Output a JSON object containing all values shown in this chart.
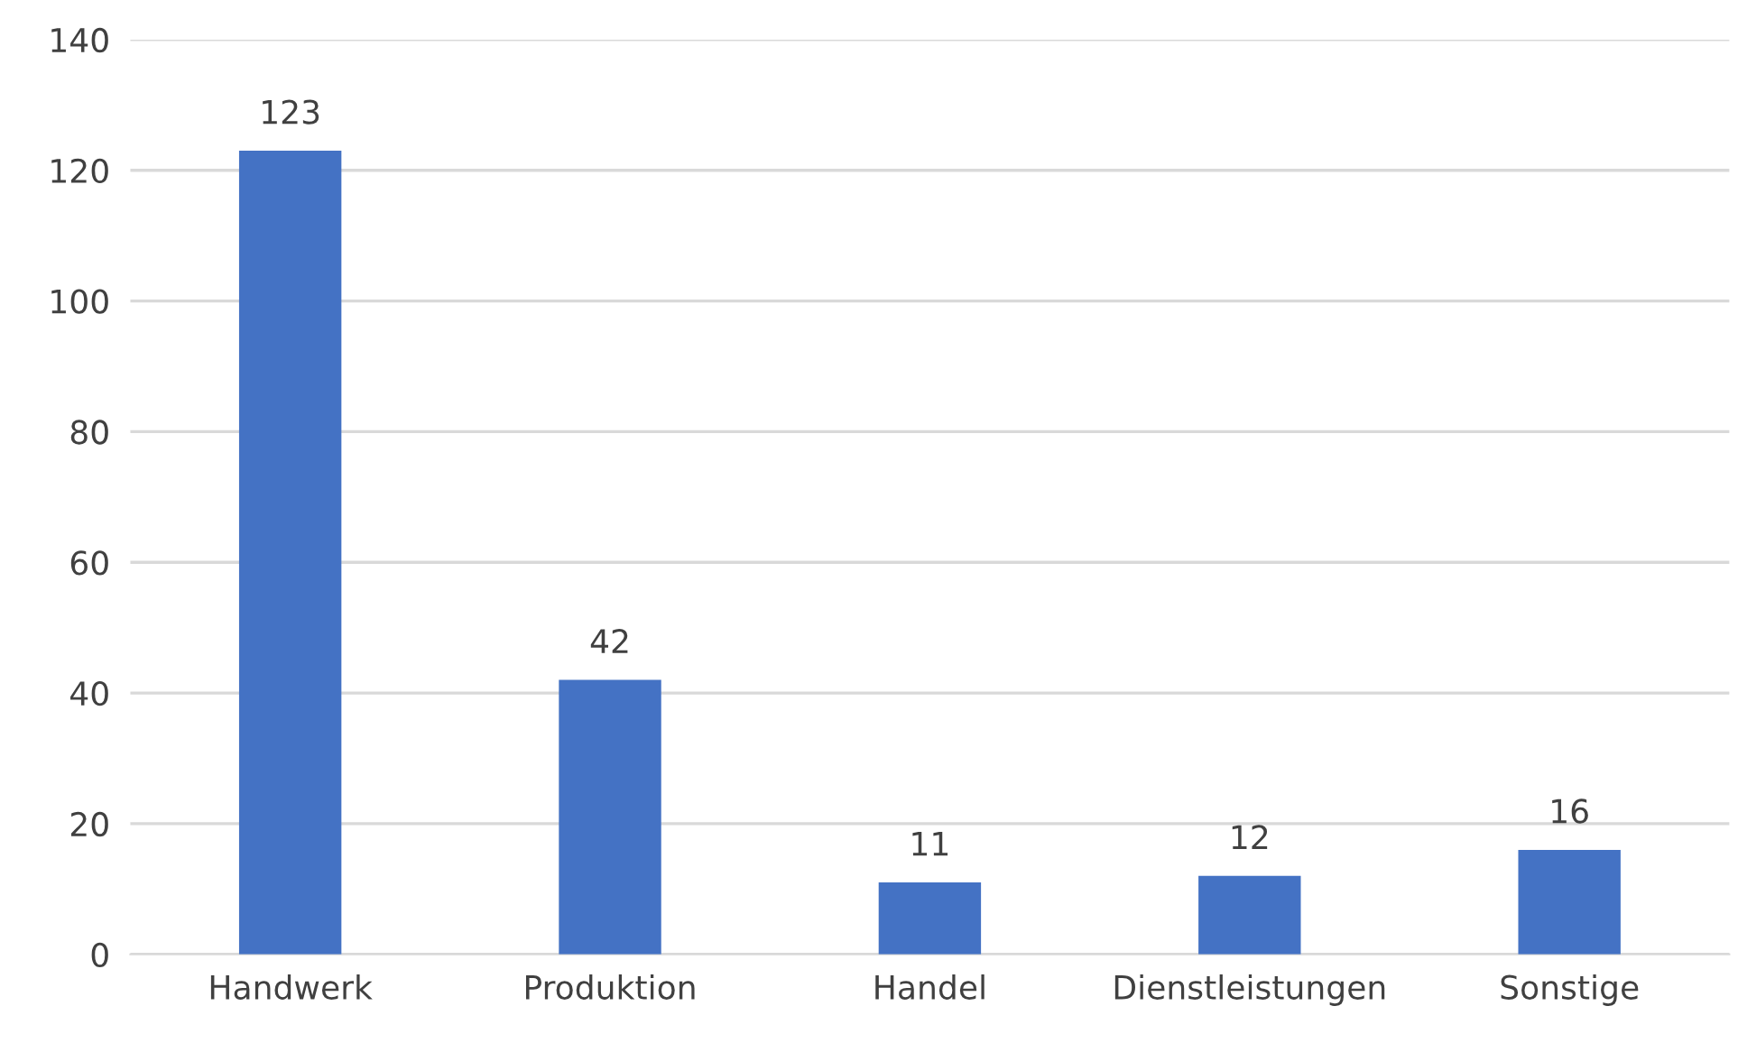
{
  "chart_data": {
    "type": "bar",
    "categories": [
      "Handwerk",
      "Produktion",
      "Handel",
      "Dienstleistungen",
      "Sonstige"
    ],
    "values": [
      123,
      42,
      11,
      12,
      16
    ],
    "color": "#4472c4",
    "ylim": [
      0,
      140
    ],
    "yticks": [
      0,
      20,
      40,
      60,
      80,
      100,
      120,
      140
    ],
    "grid": "y",
    "data_labels": true
  }
}
